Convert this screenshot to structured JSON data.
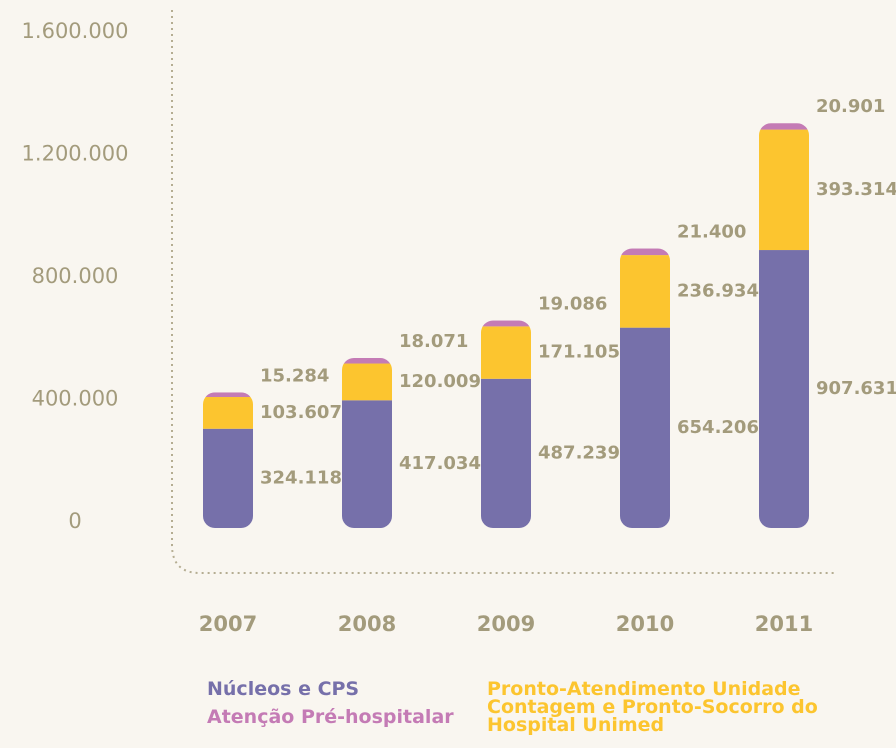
{
  "chart_data": {
    "type": "stacked_bar",
    "categories": [
      "2007",
      "2008",
      "2009",
      "2010",
      "2011"
    ],
    "series": [
      {
        "name": "Núcleos e CPS",
        "color": "#7670aa",
        "values": [
          324118,
          417034,
          487239,
          654206,
          907631
        ],
        "value_labels": [
          "324.118",
          "417.034",
          "487.239",
          "654.206",
          "907.631"
        ]
      },
      {
        "name": "Pronto-Atendimento Unidade Contagem e Pronto-Socorro do Hospital Unimed",
        "color": "#fcc52f",
        "values": [
          103607,
          120009,
          171105,
          236934,
          393314
        ],
        "value_labels": [
          "103.607",
          "120.009",
          "171.105",
          "236.934",
          "393.314"
        ]
      },
      {
        "name": "Atenção Pré-hospitalar",
        "color": "#c47bb5",
        "values": [
          15284,
          18071,
          19086,
          21400,
          20901
        ],
        "value_labels": [
          "15.284",
          "18.071",
          "19.086",
          "21.400",
          "20.901"
        ]
      }
    ],
    "ylim": [
      0,
      1600000
    ],
    "yticks": [
      0,
      {
        "value": 400000,
        "label": "400.000"
      },
      {
        "value": 800000,
        "label": "800.000"
      },
      {
        "value": 1200000,
        "label": "1.200.000"
      },
      {
        "value": 1600000,
        "label": "1.600.000"
      }
    ]
  }
}
